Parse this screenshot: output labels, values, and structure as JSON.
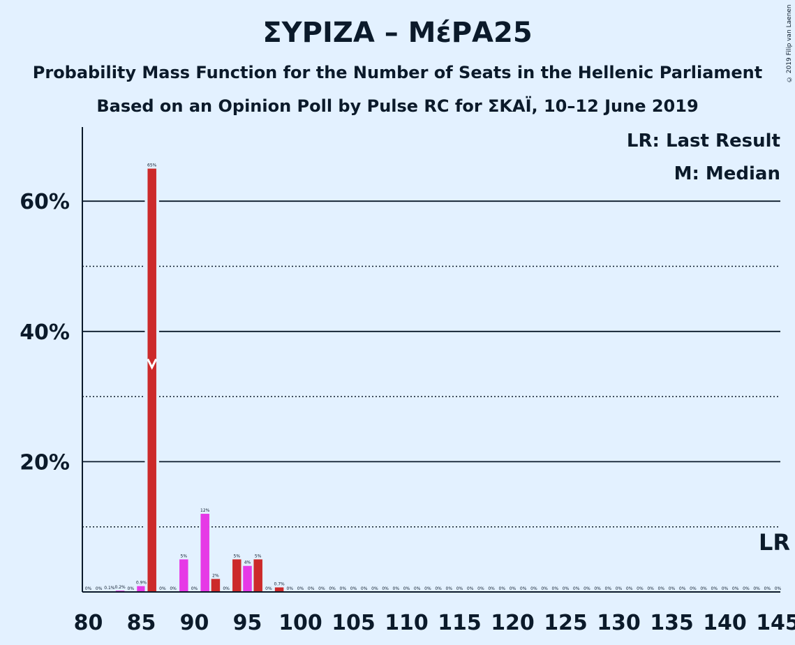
{
  "chart_data": {
    "type": "bar",
    "title": "ΣΥΡΙΖΑ – ΜέΡΑ25",
    "subtitle": "Probability Mass Function for the Number of Seats in the Hellenic Parliament",
    "subtitle2": "Based on an Opinion Poll by Pulse RC for ΣΚΑΪ, 10–12 June 2019",
    "copyright": "© 2019 Filip van Laenen",
    "legend": {
      "lr": "LR: Last Result",
      "m": "M: Median",
      "placement": "top-right"
    },
    "last_result_mark": "LR",
    "median_seat": 86,
    "last_result_seat": 145,
    "x_range": [
      80,
      145
    ],
    "x_ticks": [
      80,
      85,
      90,
      95,
      100,
      105,
      110,
      115,
      120,
      125,
      130,
      135,
      140,
      145
    ],
    "ylim": [
      0,
      70
    ],
    "y_major_gridlines": [
      20,
      40,
      60
    ],
    "y_minor_gridlines": [
      10,
      30,
      50
    ],
    "y_tick_labels": [
      "20%",
      "40%",
      "60%"
    ],
    "colors": {
      "red": "#cc2a2a",
      "pink": "#e639e6",
      "grid": "#0b1a2a"
    },
    "bars": [
      {
        "seat": 80,
        "value": 0,
        "label": "0%"
      },
      {
        "seat": 81,
        "value": 0,
        "label": "0%"
      },
      {
        "seat": 82,
        "value": 0.1,
        "label": "0.1%"
      },
      {
        "seat": 83,
        "value": 0.2,
        "label": "0.2%"
      },
      {
        "seat": 84,
        "value": 0,
        "label": "0%"
      },
      {
        "seat": 85,
        "value": 0.9,
        "label": "0.9%"
      },
      {
        "seat": 86,
        "value": 65,
        "label": "65%"
      },
      {
        "seat": 87,
        "value": 0,
        "label": "0%"
      },
      {
        "seat": 88,
        "value": 0,
        "label": "0%"
      },
      {
        "seat": 89,
        "value": 5,
        "label": "5%"
      },
      {
        "seat": 90,
        "value": 0,
        "label": "0%"
      },
      {
        "seat": 91,
        "value": 12,
        "label": "12%"
      },
      {
        "seat": 92,
        "value": 2,
        "label": "2%"
      },
      {
        "seat": 93,
        "value": 0,
        "label": "0%"
      },
      {
        "seat": 94,
        "value": 5,
        "label": "5%"
      },
      {
        "seat": 95,
        "value": 4,
        "label": "4%"
      },
      {
        "seat": 96,
        "value": 5,
        "label": "5%"
      },
      {
        "seat": 97,
        "value": 0,
        "label": "0%"
      },
      {
        "seat": 98,
        "value": 0.7,
        "label": "0.7%"
      },
      {
        "seat": 99,
        "value": 0,
        "label": "0%"
      },
      {
        "seat": 100,
        "value": 0,
        "label": "0%"
      },
      {
        "seat": 101,
        "value": 0,
        "label": "0%"
      },
      {
        "seat": 102,
        "value": 0,
        "label": "0%"
      },
      {
        "seat": 103,
        "value": 0,
        "label": "0%"
      },
      {
        "seat": 104,
        "value": 0,
        "label": "0%"
      },
      {
        "seat": 105,
        "value": 0,
        "label": "0%"
      },
      {
        "seat": 106,
        "value": 0,
        "label": "0%"
      },
      {
        "seat": 107,
        "value": 0,
        "label": "0%"
      },
      {
        "seat": 108,
        "value": 0,
        "label": "0%"
      },
      {
        "seat": 109,
        "value": 0,
        "label": "0%"
      },
      {
        "seat": 110,
        "value": 0,
        "label": "0%"
      },
      {
        "seat": 111,
        "value": 0,
        "label": "0%"
      },
      {
        "seat": 112,
        "value": 0,
        "label": "0%"
      },
      {
        "seat": 113,
        "value": 0,
        "label": "0%"
      },
      {
        "seat": 114,
        "value": 0,
        "label": "0%"
      },
      {
        "seat": 115,
        "value": 0,
        "label": "0%"
      },
      {
        "seat": 116,
        "value": 0,
        "label": "0%"
      },
      {
        "seat": 117,
        "value": 0,
        "label": "0%"
      },
      {
        "seat": 118,
        "value": 0,
        "label": "0%"
      },
      {
        "seat": 119,
        "value": 0,
        "label": "0%"
      },
      {
        "seat": 120,
        "value": 0,
        "label": "0%"
      },
      {
        "seat": 121,
        "value": 0,
        "label": "0%"
      },
      {
        "seat": 122,
        "value": 0,
        "label": "0%"
      },
      {
        "seat": 123,
        "value": 0,
        "label": "0%"
      },
      {
        "seat": 124,
        "value": 0,
        "label": "0%"
      },
      {
        "seat": 125,
        "value": 0,
        "label": "0%"
      },
      {
        "seat": 126,
        "value": 0,
        "label": "0%"
      },
      {
        "seat": 127,
        "value": 0,
        "label": "0%"
      },
      {
        "seat": 128,
        "value": 0,
        "label": "0%"
      },
      {
        "seat": 129,
        "value": 0,
        "label": "0%"
      },
      {
        "seat": 130,
        "value": 0,
        "label": "0%"
      },
      {
        "seat": 131,
        "value": 0,
        "label": "0%"
      },
      {
        "seat": 132,
        "value": 0,
        "label": "0%"
      },
      {
        "seat": 133,
        "value": 0,
        "label": "0%"
      },
      {
        "seat": 134,
        "value": 0,
        "label": "0%"
      },
      {
        "seat": 135,
        "value": 0,
        "label": "0%"
      },
      {
        "seat": 136,
        "value": 0,
        "label": "0%"
      },
      {
        "seat": 137,
        "value": 0,
        "label": "0%"
      },
      {
        "seat": 138,
        "value": 0,
        "label": "0%"
      },
      {
        "seat": 139,
        "value": 0,
        "label": "0%"
      },
      {
        "seat": 140,
        "value": 0,
        "label": "0%"
      },
      {
        "seat": 141,
        "value": 0,
        "label": "0%"
      },
      {
        "seat": 142,
        "value": 0,
        "label": "0%"
      },
      {
        "seat": 143,
        "value": 0,
        "label": "0%"
      },
      {
        "seat": 144,
        "value": 0,
        "label": "0%"
      },
      {
        "seat": 145,
        "value": 0,
        "label": "0%"
      }
    ]
  }
}
